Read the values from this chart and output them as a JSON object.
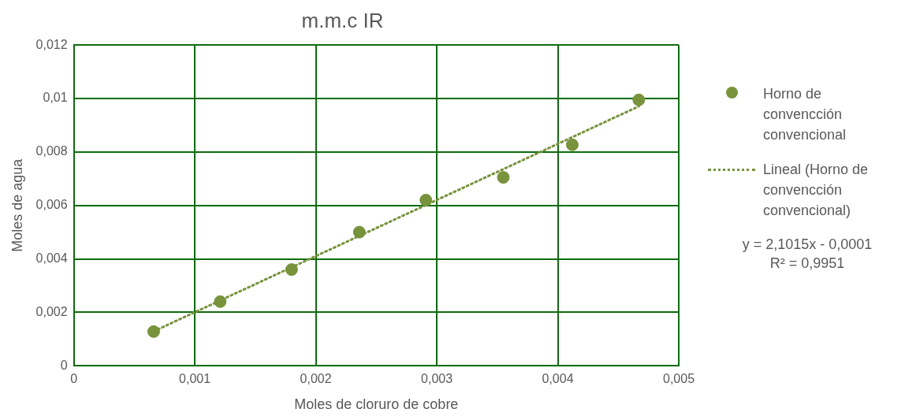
{
  "chart_data": {
    "type": "scatter",
    "title": "m.m.c IR",
    "xlabel": "Moles de cloruro de cobre",
    "ylabel": "Moles de agua",
    "series": [
      {
        "name": "Horno de convencción convencional",
        "type": "scatter",
        "color": "#77933c",
        "x": [
          0.00066,
          0.00121,
          0.0018,
          0.00236,
          0.00291,
          0.00355,
          0.00412,
          0.00467
        ],
        "values": [
          0.00128,
          0.0024,
          0.0036,
          0.005,
          0.0062,
          0.00705,
          0.00827,
          0.00995
        ],
        "marker": "circle"
      },
      {
        "name": "Lineal (Horno de convencción convencional)",
        "type": "line",
        "color": "#77933c",
        "x": [
          0.00066,
          0.00467
        ],
        "values": [
          0.00129,
          0.00971
        ],
        "marker": "none",
        "line_style": "dotted"
      }
    ],
    "xlim": [
      0,
      0.005
    ],
    "xticks": [
      0,
      {
        "value": 0.001,
        "label": "0,001"
      },
      {
        "value": 0.002,
        "label": "0,002"
      },
      {
        "value": 0.003,
        "label": "0,003"
      },
      {
        "value": 0.004,
        "label": "0,004"
      },
      {
        "value": 0.005,
        "label": "0,005"
      }
    ],
    "ylim": [
      0,
      0.012
    ],
    "yticks": [
      0,
      {
        "value": 0.002,
        "label": "0,002"
      },
      {
        "value": 0.004,
        "label": "0,004"
      },
      {
        "value": 0.006,
        "label": "0,006"
      },
      {
        "value": 0.008,
        "label": "0,008"
      },
      {
        "value": 0.01,
        "label": "0,01"
      },
      {
        "value": 0.012,
        "label": "0,012"
      }
    ],
    "grid": true,
    "legend": "right",
    "annotations": [
      "y = 2,1015x - 0,0001",
      "R² = 0,9951"
    ]
  }
}
